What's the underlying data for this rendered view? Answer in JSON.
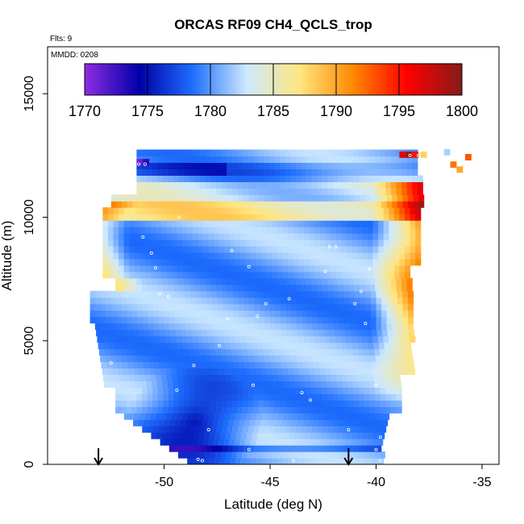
{
  "chart_data": {
    "type": "heatmap",
    "title": "ORCAS RF09 CH4_QCLS_trop",
    "flights_label": "Flts: 9",
    "date_label": "MMDD: 0208",
    "xlabel": "Latitude (deg N)",
    "ylabel": "Altitude (m)",
    "xlim": [
      -55.5,
      -34.2
    ],
    "ylim": [
      0,
      16900
    ],
    "x_ticks": [
      -50,
      -45,
      -40,
      -35
    ],
    "x_tick_labels": [
      "-50",
      "-45",
      "-40",
      "-35"
    ],
    "y_ticks": [
      0,
      5000,
      10000,
      15000
    ],
    "y_tick_labels": [
      "0",
      "5000",
      "10000",
      "15000"
    ],
    "colorbar": {
      "min": 1770,
      "max": 1800,
      "ticks": [
        1770,
        1775,
        1780,
        1785,
        1790,
        1795,
        1800
      ],
      "tick_labels": [
        "1770",
        "1775",
        "1780",
        "1785",
        "1790",
        "1795",
        "1800"
      ],
      "colors": [
        "#8a2be2",
        "#0000a8",
        "#1f6fff",
        "#cde9ff",
        "#ffe680",
        "#ff8800",
        "#ff0000",
        "#8b1a1a"
      ]
    },
    "arrows_latitude": [
      -53.1,
      -41.3
    ],
    "description_of_field": {
      "high_values_region": "east side (lat -40 to -38), altitudes 3000-12000 m, CH4 ~1790-1800",
      "low_values_region": "southwest low altitudes (lat -50 to -46, 0-4000 m), CH4 ~1772-1776",
      "mid_values": "interior mostly 1777-1786"
    }
  }
}
